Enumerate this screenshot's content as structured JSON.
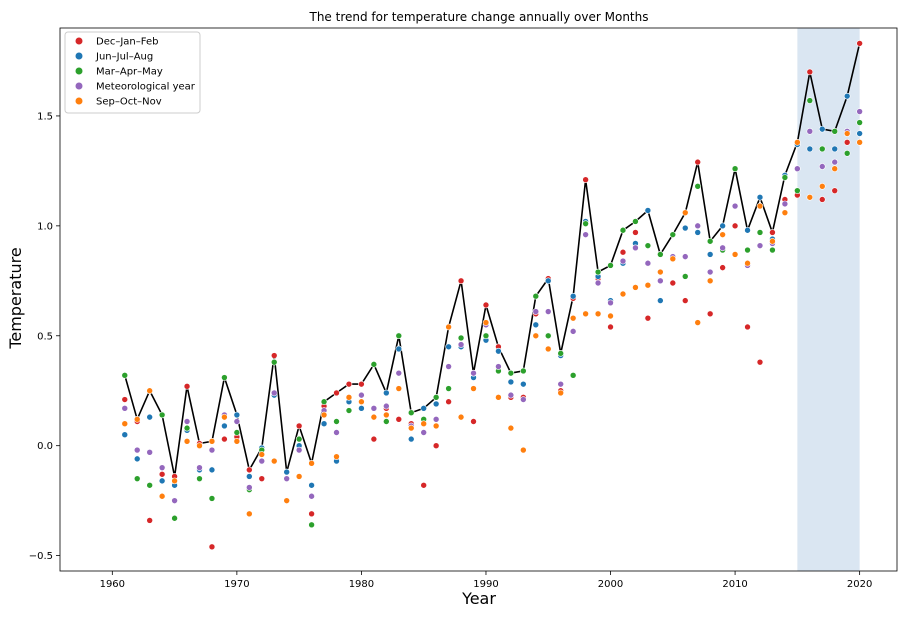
{
  "chart_data": {
    "type": "scatter",
    "title": "The trend for temperature change annually over Months",
    "xlabel": "Year",
    "ylabel": "Temperature",
    "xlim": [
      1955.8,
      2023.0
    ],
    "ylim": [
      -0.57,
      1.9
    ],
    "xticks": [
      1960,
      1970,
      1980,
      1990,
      2000,
      2010,
      2020
    ],
    "yticks": [
      -0.5,
      0.0,
      0.5,
      1.0,
      1.5
    ],
    "ytick_labels": [
      "−0.5",
      "0.0",
      "0.5",
      "1.0",
      "1.5"
    ],
    "grid": false,
    "legend_position": "top-left",
    "highlight_span": [
      2015,
      2020
    ],
    "highlight_color": "#dae6f2",
    "max_line_color": "#000000",
    "years": [
      1961,
      1962,
      1963,
      1964,
      1965,
      1966,
      1967,
      1968,
      1969,
      1970,
      1971,
      1972,
      1973,
      1974,
      1975,
      1976,
      1977,
      1978,
      1979,
      1980,
      1981,
      1982,
      1983,
      1984,
      1985,
      1986,
      1987,
      1988,
      1989,
      1990,
      1991,
      1992,
      1993,
      1994,
      1995,
      1996,
      1997,
      1998,
      1999,
      2000,
      2001,
      2002,
      2003,
      2004,
      2005,
      2006,
      2007,
      2008,
      2009,
      2010,
      2011,
      2012,
      2013,
      2014,
      2015,
      2016,
      2017,
      2018,
      2019,
      2020
    ],
    "series": [
      {
        "name": "Dec–Jan–Feb",
        "color": "#d62728",
        "values": [
          0.21,
          0.11,
          -0.34,
          -0.13,
          -0.14,
          0.27,
          0.01,
          -0.46,
          0.03,
          0.04,
          -0.11,
          -0.15,
          0.41,
          -0.12,
          0.09,
          -0.31,
          0.18,
          0.24,
          0.28,
          0.28,
          0.03,
          0.17,
          0.12,
          0.1,
          -0.18,
          0.0,
          0.2,
          0.75,
          0.11,
          0.64,
          0.45,
          0.22,
          0.22,
          0.6,
          0.76,
          0.25,
          0.67,
          1.21,
          0.76,
          0.54,
          0.88,
          0.97,
          0.58,
          0.87,
          0.74,
          0.66,
          1.29,
          0.6,
          0.81,
          1.0,
          0.54,
          0.38,
          0.97,
          1.12,
          1.14,
          1.7,
          1.12,
          1.16,
          1.38,
          1.83
        ]
      },
      {
        "name": "Jun–Jul–Aug",
        "color": "#1f77b4",
        "values": [
          0.05,
          -0.06,
          0.13,
          -0.16,
          -0.18,
          0.07,
          -0.11,
          -0.11,
          0.09,
          0.14,
          -0.14,
          -0.01,
          0.23,
          -0.12,
          0.0,
          -0.18,
          0.1,
          -0.07,
          0.2,
          0.17,
          0.37,
          0.24,
          0.44,
          0.03,
          0.17,
          0.19,
          0.45,
          0.45,
          0.31,
          0.48,
          0.43,
          0.29,
          0.28,
          0.55,
          0.75,
          0.41,
          0.68,
          1.02,
          0.77,
          0.66,
          0.83,
          0.92,
          1.07,
          0.66,
          0.85,
          0.99,
          0.97,
          0.87,
          1.0,
          1.26,
          0.98,
          1.13,
          0.94,
          1.23,
          1.37,
          1.35,
          1.44,
          1.35,
          1.59,
          1.42
        ]
      },
      {
        "name": "Mar–Apr–May",
        "color": "#2ca02c",
        "values": [
          0.32,
          -0.15,
          -0.18,
          0.14,
          -0.33,
          0.08,
          -0.15,
          -0.24,
          0.31,
          0.06,
          -0.2,
          -0.02,
          0.38,
          -0.15,
          0.03,
          -0.36,
          0.2,
          0.11,
          0.16,
          0.2,
          0.37,
          0.11,
          0.5,
          0.15,
          0.12,
          0.22,
          0.26,
          0.49,
          0.33,
          0.5,
          0.34,
          0.33,
          0.34,
          0.68,
          0.5,
          0.42,
          0.32,
          1.01,
          0.79,
          0.82,
          0.98,
          1.02,
          0.91,
          0.87,
          0.96,
          0.77,
          1.18,
          0.93,
          0.89,
          1.26,
          0.89,
          0.97,
          0.89,
          1.22,
          1.16,
          1.57,
          1.35,
          1.43,
          1.33,
          1.47
        ]
      },
      {
        "name": "Meteorological year",
        "color": "#9467bd",
        "values": [
          0.17,
          -0.02,
          -0.03,
          -0.1,
          -0.25,
          0.11,
          -0.1,
          -0.02,
          0.14,
          0.11,
          -0.19,
          -0.07,
          0.24,
          -0.15,
          -0.02,
          -0.23,
          0.16,
          0.06,
          0.22,
          0.23,
          0.17,
          0.18,
          0.33,
          0.09,
          0.06,
          0.12,
          0.36,
          0.46,
          0.33,
          0.55,
          0.36,
          0.23,
          0.21,
          0.61,
          0.61,
          0.28,
          0.52,
          0.96,
          0.74,
          0.65,
          0.84,
          0.9,
          0.83,
          0.75,
          0.86,
          0.86,
          1.0,
          0.79,
          0.9,
          1.09,
          0.82,
          0.91,
          0.92,
          1.1,
          1.26,
          1.43,
          1.27,
          1.29,
          1.43,
          1.52
        ]
      },
      {
        "name": "Sep–Oct–Nov",
        "color": "#ff7f0e",
        "values": [
          0.1,
          0.12,
          0.25,
          -0.23,
          -0.16,
          0.02,
          0.0,
          0.02,
          0.13,
          0.02,
          -0.31,
          -0.04,
          -0.07,
          -0.25,
          -0.14,
          -0.08,
          0.14,
          -0.05,
          0.22,
          0.2,
          0.13,
          0.14,
          0.26,
          0.08,
          0.1,
          0.09,
          0.54,
          0.13,
          0.26,
          0.56,
          0.22,
          0.08,
          -0.02,
          0.5,
          0.44,
          0.24,
          0.58,
          0.6,
          0.6,
          0.59,
          0.69,
          0.72,
          0.73,
          0.79,
          0.85,
          1.06,
          0.56,
          0.75,
          0.96,
          0.87,
          0.83,
          1.09,
          0.93,
          1.06,
          1.38,
          1.13,
          1.18,
          1.26,
          1.42,
          1.38
        ]
      }
    ]
  }
}
